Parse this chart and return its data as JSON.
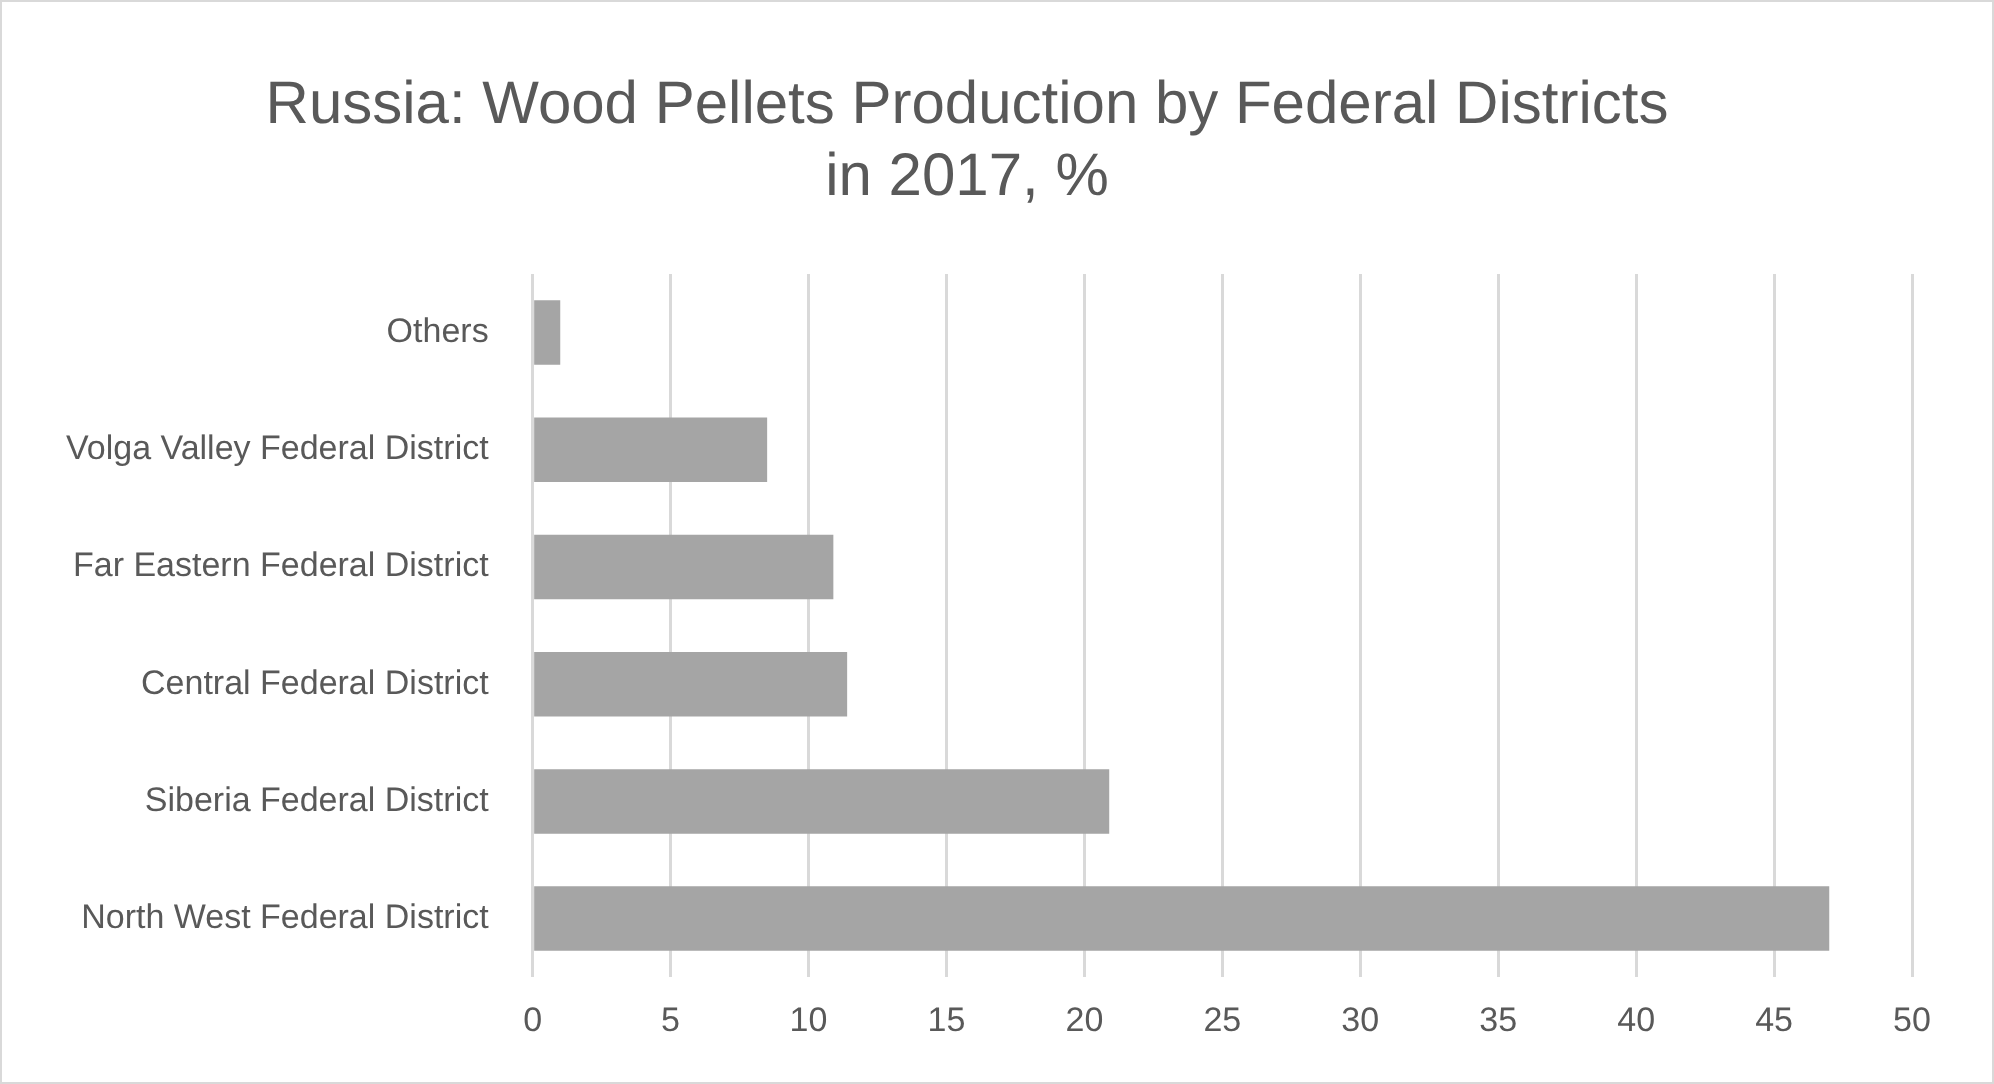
{
  "chart_data": {
    "type": "bar",
    "orientation": "horizontal",
    "title": [
      "Russia: Wood Pellets Production by Federal Districts",
      "in 2017, %"
    ],
    "categories": [
      "Others",
      "Volga Valley Federal District",
      "Far Eastern Federal District",
      "Central Federal District",
      "Siberia Federal District",
      "North West Federal District"
    ],
    "values": [
      1,
      8.5,
      10.9,
      11.4,
      20.9,
      47
    ],
    "color": "#a5a5a5",
    "xlim": [
      0,
      50
    ],
    "xticks": [
      0,
      5,
      10,
      15,
      20,
      25,
      30,
      35,
      40,
      45,
      50
    ],
    "grid": "x",
    "legend": false
  }
}
